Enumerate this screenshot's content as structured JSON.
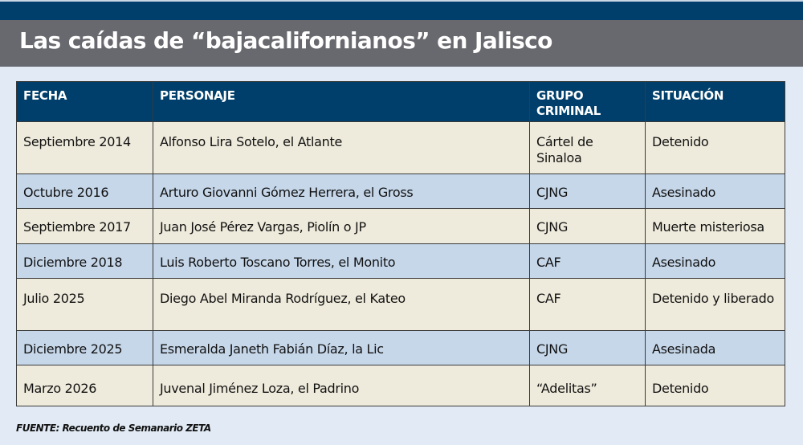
{
  "title": "Las caídas de “bajacalifornianos” en Jalisco",
  "colors": {
    "header": "#003f6b",
    "title_band": "#68696e",
    "row_beige": "#efebdc",
    "row_blue": "#c6d7ea",
    "background": "#e2ebf5"
  },
  "table": {
    "headers": [
      "FECHA",
      "PERSONAJE",
      "GRUPO CRIMINAL",
      "SITUACIÓN"
    ],
    "rows": [
      [
        "Septiembre 2014",
        "Alfonso Lira Sotelo, el Atlante",
        "Cártel de Sinaloa",
        "Detenido"
      ],
      [
        "Octubre 2016",
        "Arturo Giovanni Gómez Herrera, el Gross",
        "CJNG",
        "Asesinado"
      ],
      [
        "Septiembre 2017",
        "Juan José Pérez Vargas, Piolín o JP",
        "CJNG",
        "Muerte misteriosa"
      ],
      [
        "Diciembre 2018",
        "Luis Roberto Toscano Torres, el Monito",
        "CAF",
        "Asesinado"
      ],
      [
        "Julio 2025",
        "Diego Abel Miranda Rodríguez, el Kateo",
        "CAF",
        "Detenido y liberado"
      ],
      [
        "Diciembre 2025",
        "Esmeralda Janeth Fabián Díaz, la Lic",
        "CJNG",
        "Asesinada"
      ],
      [
        "Marzo 2026",
        "Juvenal Jiménez Loza, el Padrino",
        "“Adelitas”",
        "Detenido"
      ]
    ]
  },
  "source": "FUENTE: Recuento de Semanario ZETA"
}
